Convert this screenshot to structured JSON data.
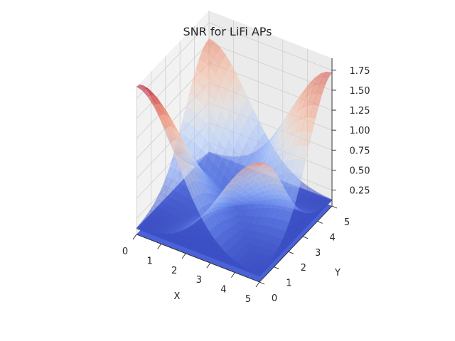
{
  "chart_data": {
    "type": "surface3d",
    "title": "SNR for LiFi APs",
    "xlabel": "X",
    "ylabel": "Y",
    "zlabel": "",
    "xlim": [
      0,
      5
    ],
    "ylim": [
      0,
      5
    ],
    "zlim": [
      0.05,
      1.9
    ],
    "x_ticks": [
      0,
      1,
      2,
      3,
      4,
      5
    ],
    "y_ticks": [
      0,
      1,
      2,
      3,
      4,
      5
    ],
    "z_ticks": [
      0.25,
      0.5,
      0.75,
      1.0,
      1.25,
      1.5,
      1.75
    ],
    "z_tick_labels": [
      "0.25",
      "0.50",
      "0.75",
      "1.00",
      "1.25",
      "1.50",
      "1.75"
    ],
    "colormap": [
      "#3b4cc0",
      "#6f91f2",
      "#aac7fd",
      "#dddcdc",
      "#f7b89c",
      "#e7755b",
      "#b40426"
    ],
    "access_points": [
      {
        "x": 0,
        "y": 5,
        "peak": 1.55
      },
      {
        "x": 5,
        "y": 5,
        "peak": 1.72
      },
      {
        "x": 5,
        "y": 0,
        "peak": 1.5
      },
      {
        "x": 0,
        "y": 0,
        "peak": 1.9
      }
    ],
    "flat_planes": [
      {
        "z": 0.12,
        "color": "#4f6ee6"
      },
      {
        "z": 0.05,
        "color": "#3d57d4"
      }
    ]
  }
}
